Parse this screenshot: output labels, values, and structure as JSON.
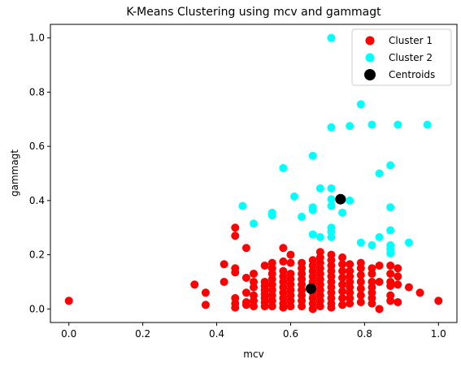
{
  "chart_data": {
    "type": "scatter",
    "title": "K-Means Clustering using mcv and gammagt",
    "xlabel": "mcv",
    "ylabel": "gammagt",
    "xlim": [
      -0.05,
      1.05
    ],
    "ylim": [
      -0.05,
      1.05
    ],
    "xticks": [
      "0.0",
      "0.2",
      "0.4",
      "0.6",
      "0.8",
      "1.0"
    ],
    "yticks": [
      "0.0",
      "0.2",
      "0.4",
      "0.6",
      "0.8",
      "1.0"
    ],
    "grid": false,
    "legend_position": "top-right",
    "series": [
      {
        "name": "Cluster 1",
        "color": "#ff0000",
        "points": [
          [
            0.0,
            0.03
          ],
          [
            0.34,
            0.09
          ],
          [
            0.37,
            0.06
          ],
          [
            0.37,
            0.015
          ],
          [
            0.42,
            0.165
          ],
          [
            0.42,
            0.1
          ],
          [
            0.45,
            0.3
          ],
          [
            0.45,
            0.27
          ],
          [
            0.45,
            0.15
          ],
          [
            0.45,
            0.135
          ],
          [
            0.45,
            0.04
          ],
          [
            0.45,
            0.02
          ],
          [
            0.45,
            0.005
          ],
          [
            0.48,
            0.225
          ],
          [
            0.48,
            0.115
          ],
          [
            0.48,
            0.06
          ],
          [
            0.48,
            0.025
          ],
          [
            0.48,
            0.015
          ],
          [
            0.5,
            0.13
          ],
          [
            0.5,
            0.1
          ],
          [
            0.5,
            0.08
          ],
          [
            0.5,
            0.05
          ],
          [
            0.5,
            0.03
          ],
          [
            0.5,
            0.01
          ],
          [
            0.53,
            0.16
          ],
          [
            0.53,
            0.1
          ],
          [
            0.53,
            0.085
          ],
          [
            0.53,
            0.07
          ],
          [
            0.53,
            0.055
          ],
          [
            0.53,
            0.04
          ],
          [
            0.53,
            0.025
          ],
          [
            0.53,
            0.01
          ],
          [
            0.55,
            0.17
          ],
          [
            0.55,
            0.15
          ],
          [
            0.55,
            0.13
          ],
          [
            0.55,
            0.11
          ],
          [
            0.55,
            0.09
          ],
          [
            0.55,
            0.07
          ],
          [
            0.55,
            0.05
          ],
          [
            0.55,
            0.03
          ],
          [
            0.55,
            0.01
          ],
          [
            0.58,
            0.225
          ],
          [
            0.58,
            0.175
          ],
          [
            0.58,
            0.14
          ],
          [
            0.58,
            0.12
          ],
          [
            0.58,
            0.1
          ],
          [
            0.58,
            0.08
          ],
          [
            0.58,
            0.06
          ],
          [
            0.58,
            0.04
          ],
          [
            0.58,
            0.02
          ],
          [
            0.58,
            0.005
          ],
          [
            0.6,
            0.2
          ],
          [
            0.6,
            0.17
          ],
          [
            0.6,
            0.13
          ],
          [
            0.6,
            0.11
          ],
          [
            0.6,
            0.09
          ],
          [
            0.6,
            0.07
          ],
          [
            0.6,
            0.05
          ],
          [
            0.6,
            0.03
          ],
          [
            0.6,
            0.01
          ],
          [
            0.63,
            0.17
          ],
          [
            0.63,
            0.15
          ],
          [
            0.63,
            0.13
          ],
          [
            0.63,
            0.11
          ],
          [
            0.63,
            0.09
          ],
          [
            0.63,
            0.07
          ],
          [
            0.63,
            0.05
          ],
          [
            0.63,
            0.03
          ],
          [
            0.63,
            0.01
          ],
          [
            0.66,
            0.18
          ],
          [
            0.66,
            0.16
          ],
          [
            0.66,
            0.14
          ],
          [
            0.66,
            0.12
          ],
          [
            0.66,
            0.1
          ],
          [
            0.66,
            0.08
          ],
          [
            0.66,
            0.06
          ],
          [
            0.66,
            0.04
          ],
          [
            0.66,
            0.02
          ],
          [
            0.66,
            0.0
          ],
          [
            0.68,
            0.21
          ],
          [
            0.68,
            0.19
          ],
          [
            0.68,
            0.17
          ],
          [
            0.68,
            0.15
          ],
          [
            0.68,
            0.13
          ],
          [
            0.68,
            0.11
          ],
          [
            0.68,
            0.09
          ],
          [
            0.68,
            0.07
          ],
          [
            0.68,
            0.05
          ],
          [
            0.68,
            0.03
          ],
          [
            0.68,
            0.01
          ],
          [
            0.71,
            0.2
          ],
          [
            0.71,
            0.18
          ],
          [
            0.71,
            0.16
          ],
          [
            0.71,
            0.14
          ],
          [
            0.71,
            0.12
          ],
          [
            0.71,
            0.1
          ],
          [
            0.71,
            0.08
          ],
          [
            0.71,
            0.06
          ],
          [
            0.71,
            0.04
          ],
          [
            0.71,
            0.02
          ],
          [
            0.71,
            0.005
          ],
          [
            0.74,
            0.19
          ],
          [
            0.74,
            0.165
          ],
          [
            0.74,
            0.14
          ],
          [
            0.74,
            0.115
          ],
          [
            0.74,
            0.09
          ],
          [
            0.74,
            0.065
          ],
          [
            0.74,
            0.04
          ],
          [
            0.74,
            0.015
          ],
          [
            0.76,
            0.165
          ],
          [
            0.76,
            0.14
          ],
          [
            0.76,
            0.12
          ],
          [
            0.76,
            0.1
          ],
          [
            0.76,
            0.08
          ],
          [
            0.76,
            0.06
          ],
          [
            0.76,
            0.04
          ],
          [
            0.76,
            0.02
          ],
          [
            0.79,
            0.17
          ],
          [
            0.79,
            0.15
          ],
          [
            0.79,
            0.125
          ],
          [
            0.79,
            0.1
          ],
          [
            0.79,
            0.075
          ],
          [
            0.79,
            0.05
          ],
          [
            0.79,
            0.025
          ],
          [
            0.82,
            0.15
          ],
          [
            0.82,
            0.13
          ],
          [
            0.82,
            0.1
          ],
          [
            0.82,
            0.08
          ],
          [
            0.82,
            0.06
          ],
          [
            0.82,
            0.04
          ],
          [
            0.82,
            0.02
          ],
          [
            0.84,
            0.16
          ],
          [
            0.84,
            0.1
          ],
          [
            0.84,
            0.0
          ],
          [
            0.87,
            0.16
          ],
          [
            0.87,
            0.13
          ],
          [
            0.87,
            0.1
          ],
          [
            0.87,
            0.085
          ],
          [
            0.87,
            0.05
          ],
          [
            0.87,
            0.03
          ],
          [
            0.89,
            0.15
          ],
          [
            0.89,
            0.12
          ],
          [
            0.89,
            0.09
          ],
          [
            0.89,
            0.025
          ],
          [
            0.92,
            0.08
          ],
          [
            0.95,
            0.06
          ],
          [
            1.0,
            0.03
          ]
        ]
      },
      {
        "name": "Cluster 2",
        "color": "#00ffff",
        "points": [
          [
            0.71,
            1.0
          ],
          [
            0.79,
            0.755
          ],
          [
            0.71,
            0.67
          ],
          [
            0.76,
            0.675
          ],
          [
            0.82,
            0.68
          ],
          [
            0.89,
            0.68
          ],
          [
            0.97,
            0.68
          ],
          [
            0.66,
            0.565
          ],
          [
            0.58,
            0.52
          ],
          [
            0.87,
            0.53
          ],
          [
            0.84,
            0.5
          ],
          [
            0.71,
            0.445
          ],
          [
            0.68,
            0.445
          ],
          [
            0.61,
            0.415
          ],
          [
            0.71,
            0.405
          ],
          [
            0.74,
            0.405
          ],
          [
            0.76,
            0.4
          ],
          [
            0.71,
            0.38
          ],
          [
            0.47,
            0.38
          ],
          [
            0.66,
            0.375
          ],
          [
            0.66,
            0.365
          ],
          [
            0.87,
            0.375
          ],
          [
            0.55,
            0.355
          ],
          [
            0.55,
            0.345
          ],
          [
            0.74,
            0.355
          ],
          [
            0.63,
            0.34
          ],
          [
            0.5,
            0.315
          ],
          [
            0.71,
            0.3
          ],
          [
            0.71,
            0.285
          ],
          [
            0.87,
            0.29
          ],
          [
            0.66,
            0.275
          ],
          [
            0.68,
            0.265
          ],
          [
            0.71,
            0.265
          ],
          [
            0.84,
            0.265
          ],
          [
            0.79,
            0.245
          ],
          [
            0.82,
            0.235
          ],
          [
            0.92,
            0.245
          ],
          [
            0.87,
            0.235
          ],
          [
            0.87,
            0.22
          ],
          [
            0.87,
            0.205
          ]
        ]
      },
      {
        "name": "Centroids",
        "color": "#000000",
        "points": [
          [
            0.655,
            0.075
          ],
          [
            0.735,
            0.405
          ]
        ]
      }
    ]
  }
}
